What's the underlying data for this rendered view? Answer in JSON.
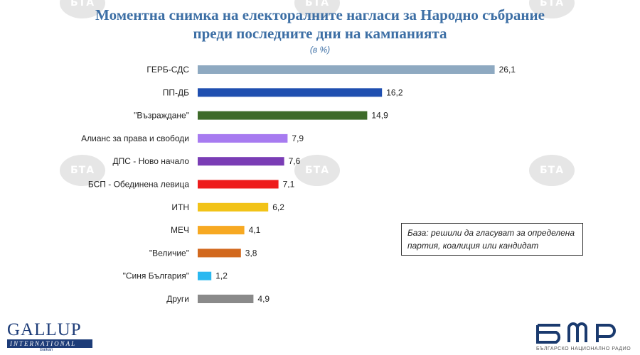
{
  "title_line1": "Моментна снимка на електоралните нагласи за Народно събрание",
  "title_line2": "преди последните дни на кампанията",
  "unit_label": "(в %)",
  "note_line1": "База: решили да гласуват за определена",
  "note_line2": "партия, коалиция или кандидат",
  "watermark_text": "БТА",
  "logos": {
    "gallup_name": "GALLUP",
    "gallup_bar": "INTERNATIONAL",
    "gallup_sub": "Balkan",
    "bnr_text": "БЪЛГАРСКО НАЦИОНАЛНО РАДИО"
  },
  "chart_data": {
    "type": "bar",
    "orientation": "horizontal",
    "title": "Моментна снимка на електоралните нагласи за Народно събрание преди последните дни на кампанията",
    "unit": "(в %)",
    "xlim": [
      0,
      30
    ],
    "grid": false,
    "categories": [
      "ГЕРБ-СДС",
      "ПП-ДБ",
      "\"Възраждане\"",
      "Алианс за права и свободи",
      "ДПС - Ново начало",
      "БСП - Обединена левица",
      "ИТН",
      "МЕЧ",
      "\"Величие\"",
      "\"Синя България\"",
      "Други"
    ],
    "values": [
      26.1,
      16.2,
      14.9,
      7.9,
      7.6,
      7.1,
      6.2,
      4.1,
      3.8,
      1.2,
      4.9
    ],
    "value_labels": [
      "26,1",
      "16,2",
      "14,9",
      "7,9",
      "7,6",
      "7,1",
      "6,2",
      "4,1",
      "3,8",
      "1,2",
      "4,9"
    ],
    "colors": [
      "#8ea9c1",
      "#1f4fb0",
      "#3e6b2a",
      "#a77bf0",
      "#7a3db5",
      "#ee1c1c",
      "#f2c318",
      "#f7a922",
      "#d2691e",
      "#2ab8f0",
      "#8a8a8a"
    ]
  }
}
